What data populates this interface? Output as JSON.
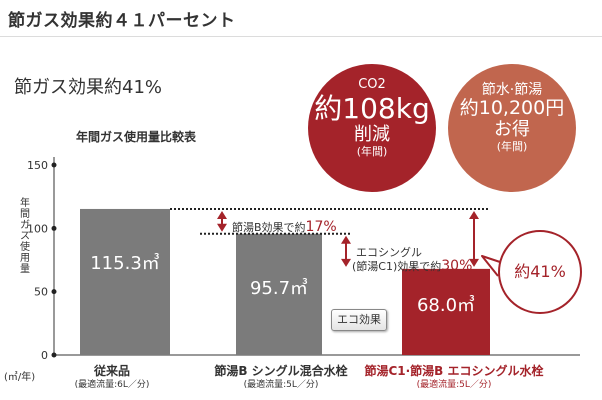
{
  "page_heading": "節ガス効果約４１パーセント",
  "summary": "節ガス効果約41%",
  "chart_data": {
    "type": "bar",
    "title": "年間ガス使用量比較表",
    "ylabel": "年間ガス使用量",
    "unit": "(㎥/年)",
    "ylim": [
      0,
      150
    ],
    "yticks": [
      "0",
      "50",
      "100",
      "150"
    ],
    "categories": [
      "従来品",
      "節湯B シングル混合水栓",
      "節湯C1·節湯B エコシングル水栓"
    ],
    "sublabels": [
      "(最適流量:6L／分)",
      "(最適流量:5L／分)",
      "(最適流量:5L／分)"
    ],
    "values": [
      115.3,
      95.7,
      68.0
    ],
    "value_labels": [
      "115.3㎥",
      "95.7㎥",
      "68.0㎥"
    ],
    "colors": [
      "#7b7b7b",
      "#7b7b7b",
      "#a4232a"
    ],
    "annotations": {
      "b_effect_text": "節湯B効果で約",
      "b_effect_pct": "17%",
      "eco_text_1": "エコシングル",
      "eco_text_2": "(節湯C1)効果で約",
      "eco_pct": "30%",
      "total": "約41%"
    }
  },
  "badges": {
    "co2": {
      "line1": "CO2",
      "line2": "約108kg",
      "line3": "削減",
      "line4": "(年間)"
    },
    "water": {
      "line1": "節水·節湯",
      "line2": "約10,200円",
      "line3": "お得",
      "line4": "(年間)"
    }
  },
  "eco_button_label": "エコ効果"
}
